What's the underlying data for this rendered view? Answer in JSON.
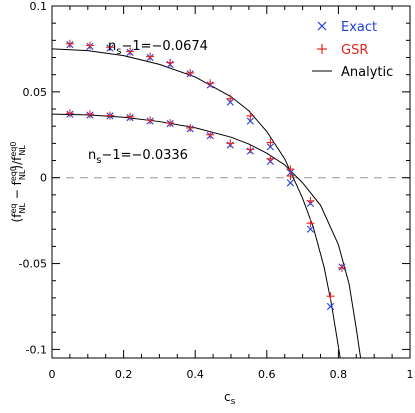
{
  "chart_data": {
    "type": "scatter",
    "xlabel": "c_s",
    "ylabel": "(f_NL^eq − f_NL^eq0)/f_NL^eq0",
    "xlim": [
      0,
      1
    ],
    "ylim": [
      -0.105,
      0.1
    ],
    "x_ticks": [
      0,
      0.2,
      0.4,
      0.6,
      0.8,
      1
    ],
    "x_tick_labels": [
      "0",
      "0.2",
      "0.4",
      "0.6",
      "0.8",
      "1"
    ],
    "y_ticks": [
      0.1,
      0.05,
      0,
      -0.05,
      -0.1
    ],
    "y_tick_labels": [
      "0.1",
      "0.05",
      "0",
      "-0.05",
      "-0.1"
    ],
    "reference_line": {
      "y": 0,
      "style": "dashed",
      "color": "#999999"
    },
    "legend": {
      "position": "top-right",
      "entries": [
        {
          "label": "Exact",
          "marker": "x",
          "color": "#1f3fd8"
        },
        {
          "label": "GSR",
          "marker": "+",
          "color": "#e8231e"
        },
        {
          "label": "Analytic",
          "marker": "line",
          "color": "#000000"
        }
      ]
    },
    "annotations": [
      {
        "text": "n_s−1=−0.0674",
        "base": "n",
        "sub": "s",
        "rest": "−1=−0.0674"
      },
      {
        "text": "n_s−1=−0.0336",
        "base": "n",
        "sub": "s",
        "rest": "−1=−0.0336"
      }
    ],
    "series": [
      {
        "name": "Exact",
        "marker": "x",
        "color": "#1f3fd8",
        "points": [
          [
            0.05,
            0.0775
          ],
          [
            0.106,
            0.0765
          ],
          [
            0.162,
            0.0755
          ],
          [
            0.218,
            0.073
          ],
          [
            0.274,
            0.07
          ],
          [
            0.33,
            0.066
          ],
          [
            0.386,
            0.0605
          ],
          [
            0.442,
            0.054
          ],
          [
            0.498,
            0.044
          ],
          [
            0.554,
            0.033
          ],
          [
            0.61,
            0.018
          ],
          [
            0.666,
            0.003
          ],
          [
            0.722,
            -0.03
          ],
          [
            0.778,
            -0.075
          ],
          [
            0.05,
            0.037
          ],
          [
            0.106,
            0.0365
          ],
          [
            0.162,
            0.036
          ],
          [
            0.218,
            0.035
          ],
          [
            0.274,
            0.033
          ],
          [
            0.33,
            0.0315
          ],
          [
            0.386,
            0.0285
          ],
          [
            0.442,
            0.0245
          ],
          [
            0.498,
            0.019
          ],
          [
            0.554,
            0.0155
          ],
          [
            0.61,
            0.0095
          ],
          [
            0.666,
            -0.003
          ],
          [
            0.722,
            -0.015
          ],
          [
            0.81,
            -0.052
          ]
        ]
      },
      {
        "name": "GSR",
        "marker": "+",
        "color": "#e8231e",
        "points": [
          [
            0.05,
            0.078
          ],
          [
            0.106,
            0.077
          ],
          [
            0.162,
            0.076
          ],
          [
            0.218,
            0.0735
          ],
          [
            0.274,
            0.0705
          ],
          [
            0.33,
            0.067
          ],
          [
            0.386,
            0.061
          ],
          [
            0.442,
            0.055
          ],
          [
            0.498,
            0.046
          ],
          [
            0.554,
            0.036
          ],
          [
            0.61,
            0.0205
          ],
          [
            0.666,
            0.005
          ],
          [
            0.722,
            -0.0265
          ],
          [
            0.778,
            -0.069
          ],
          [
            0.05,
            0.0375
          ],
          [
            0.106,
            0.037
          ],
          [
            0.162,
            0.0362
          ],
          [
            0.218,
            0.0355
          ],
          [
            0.274,
            0.0335
          ],
          [
            0.33,
            0.0318
          ],
          [
            0.386,
            0.029
          ],
          [
            0.442,
            0.025
          ],
          [
            0.498,
            0.02
          ],
          [
            0.554,
            0.0165
          ],
          [
            0.61,
            0.011
          ],
          [
            0.666,
            0.001
          ],
          [
            0.722,
            -0.0135
          ],
          [
            0.81,
            -0.0525
          ]
        ]
      },
      {
        "name": "Analytic",
        "marker": "line",
        "color": "#000000",
        "lines": [
          [
            [
              0,
              0.075
            ],
            [
              0.1,
              0.074
            ],
            [
              0.2,
              0.0711
            ],
            [
              0.3,
              0.066
            ],
            [
              0.4,
              0.0587
            ],
            [
              0.5,
              0.0472
            ],
            [
              0.55,
              0.0389
            ],
            [
              0.6,
              0.0269
            ],
            [
              0.65,
              0.011
            ],
            [
              0.7,
              -0.012
            ],
            [
              0.73,
              -0.029
            ],
            [
              0.76,
              -0.052
            ],
            [
              0.78,
              -0.073
            ],
            [
              0.795,
              -0.092
            ],
            [
              0.805,
              -0.105
            ]
          ],
          [
            [
              0,
              0.037
            ],
            [
              0.1,
              0.0366
            ],
            [
              0.2,
              0.0352
            ],
            [
              0.3,
              0.0327
            ],
            [
              0.4,
              0.0291
            ],
            [
              0.5,
              0.0236
            ],
            [
              0.55,
              0.0196
            ],
            [
              0.6,
              0.0143
            ],
            [
              0.65,
              0.0075
            ],
            [
              0.7,
              -0.003
            ],
            [
              0.75,
              -0.016
            ],
            [
              0.8,
              -0.039
            ],
            [
              0.83,
              -0.062
            ],
            [
              0.85,
              -0.088
            ],
            [
              0.862,
              -0.105
            ]
          ]
        ]
      }
    ]
  }
}
